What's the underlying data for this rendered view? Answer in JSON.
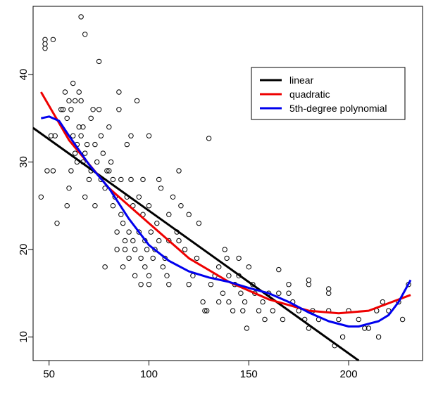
{
  "chart_data": {
    "type": "scatter",
    "title": "",
    "xlabel": "",
    "ylabel": "",
    "xlim": [
      42,
      237
    ],
    "ylim": [
      7.3,
      47.8
    ],
    "x_ticks": [
      50,
      100,
      150,
      200
    ],
    "y_ticks": [
      10,
      20,
      30,
      40
    ],
    "grid": false,
    "legend_position": "top-right",
    "point_color": "#000000",
    "points": [
      [
        46,
        26
      ],
      [
        48,
        44
      ],
      [
        48,
        43.5
      ],
      [
        48,
        43
      ],
      [
        52,
        44
      ],
      [
        49,
        29
      ],
      [
        51,
        33
      ],
      [
        53,
        33
      ],
      [
        52,
        29
      ],
      [
        54,
        23
      ],
      [
        56,
        36
      ],
      [
        57,
        36
      ],
      [
        58,
        38
      ],
      [
        59,
        35
      ],
      [
        60,
        37
      ],
      [
        61,
        36
      ],
      [
        62,
        39
      ],
      [
        63,
        37
      ],
      [
        60,
        27
      ],
      [
        59,
        25
      ],
      [
        61,
        29
      ],
      [
        62,
        33
      ],
      [
        63,
        31
      ],
      [
        64,
        32
      ],
      [
        64,
        30
      ],
      [
        65,
        34
      ],
      [
        65,
        38
      ],
      [
        66,
        33
      ],
      [
        66,
        46.6
      ],
      [
        68,
        44.6
      ],
      [
        66,
        37
      ],
      [
        67,
        34
      ],
      [
        68,
        31
      ],
      [
        69,
        32
      ],
      [
        67,
        30
      ],
      [
        68,
        26
      ],
      [
        70,
        28
      ],
      [
        71,
        35
      ],
      [
        72,
        36
      ],
      [
        73,
        32
      ],
      [
        74,
        30
      ],
      [
        73,
        25
      ],
      [
        71,
        29
      ],
      [
        75,
        41.5
      ],
      [
        75,
        36
      ],
      [
        76,
        33
      ],
      [
        76,
        28
      ],
      [
        77,
        31
      ],
      [
        78,
        27
      ],
      [
        79,
        29
      ],
      [
        80,
        34
      ],
      [
        80,
        29
      ],
      [
        78,
        18
      ],
      [
        81,
        30
      ],
      [
        82,
        28
      ],
      [
        82,
        25
      ],
      [
        83,
        26
      ],
      [
        84,
        22
      ],
      [
        84,
        20
      ],
      [
        85,
        38
      ],
      [
        85,
        36
      ],
      [
        86,
        28
      ],
      [
        86,
        24
      ],
      [
        87,
        23
      ],
      [
        87,
        18
      ],
      [
        88,
        21
      ],
      [
        88,
        20
      ],
      [
        89,
        32
      ],
      [
        89,
        26
      ],
      [
        90,
        22
      ],
      [
        90,
        19
      ],
      [
        91,
        33
      ],
      [
        91,
        28
      ],
      [
        92,
        25
      ],
      [
        92,
        21
      ],
      [
        93,
        20
      ],
      [
        93,
        17
      ],
      [
        94,
        37
      ],
      [
        95,
        26
      ],
      [
        95,
        22
      ],
      [
        96,
        19
      ],
      [
        96,
        16
      ],
      [
        97,
        28
      ],
      [
        97,
        24
      ],
      [
        98,
        21
      ],
      [
        98,
        18
      ],
      [
        99,
        20
      ],
      [
        100,
        33
      ],
      [
        100,
        25
      ],
      [
        100,
        17
      ],
      [
        100,
        16
      ],
      [
        101,
        22
      ],
      [
        102,
        19
      ],
      [
        103,
        20
      ],
      [
        104,
        23
      ],
      [
        105,
        21
      ],
      [
        105,
        28
      ],
      [
        106,
        27
      ],
      [
        107,
        18
      ],
      [
        108,
        19
      ],
      [
        109,
        17
      ],
      [
        110,
        24
      ],
      [
        110,
        21
      ],
      [
        110,
        16
      ],
      [
        112,
        26
      ],
      [
        114,
        22
      ],
      [
        115,
        21
      ],
      [
        115,
        29
      ],
      [
        116,
        25
      ],
      [
        118,
        20
      ],
      [
        120,
        24
      ],
      [
        120,
        16
      ],
      [
        122,
        17
      ],
      [
        124,
        19
      ],
      [
        125,
        23
      ],
      [
        127,
        14
      ],
      [
        128,
        13
      ],
      [
        129,
        13
      ],
      [
        130,
        32.7
      ],
      [
        131,
        16
      ],
      [
        133,
        17
      ],
      [
        135,
        18
      ],
      [
        135,
        14
      ],
      [
        137,
        15
      ],
      [
        138,
        20
      ],
      [
        139,
        19
      ],
      [
        140,
        17
      ],
      [
        140,
        14
      ],
      [
        142,
        13
      ],
      [
        143,
        16
      ],
      [
        145,
        19
      ],
      [
        145,
        17
      ],
      [
        146,
        15
      ],
      [
        147,
        13
      ],
      [
        148,
        14
      ],
      [
        149,
        11
      ],
      [
        150,
        18
      ],
      [
        152,
        16
      ],
      [
        153,
        15
      ],
      [
        155,
        13
      ],
      [
        157,
        14
      ],
      [
        158,
        12
      ],
      [
        160,
        15
      ],
      [
        162,
        13
      ],
      [
        165,
        17.7
      ],
      [
        165,
        15
      ],
      [
        167,
        12
      ],
      [
        170,
        16
      ],
      [
        170,
        15
      ],
      [
        172,
        14
      ],
      [
        175,
        13
      ],
      [
        178,
        12
      ],
      [
        180,
        16.5
      ],
      [
        180,
        16
      ],
      [
        180,
        11
      ],
      [
        182,
        13
      ],
      [
        185,
        12
      ],
      [
        190,
        15.5
      ],
      [
        190,
        15
      ],
      [
        190,
        13
      ],
      [
        193,
        9
      ],
      [
        195,
        12
      ],
      [
        197,
        10
      ],
      [
        200,
        13
      ],
      [
        205,
        12
      ],
      [
        208,
        11
      ],
      [
        210,
        11
      ],
      [
        214,
        13
      ],
      [
        215,
        10
      ],
      [
        217,
        14
      ],
      [
        220,
        13
      ],
      [
        225,
        14
      ],
      [
        227,
        12
      ],
      [
        230,
        16
      ]
    ],
    "series": [
      {
        "name": "linear",
        "color": "#000000",
        "x": [
          42,
          205
        ],
        "y": [
          33.9,
          7.3
        ]
      },
      {
        "name": "quadratic",
        "color": "#ee0000",
        "x": [
          46,
          60,
          80,
          100,
          120,
          140,
          160,
          180,
          195,
          210,
          231
        ],
        "y": [
          38.0,
          32.5,
          27.0,
          23.0,
          19.0,
          16.3,
          14.3,
          13.0,
          12.7,
          13.0,
          14.8
        ]
      },
      {
        "name": "5th-degree polynomial",
        "color": "#0000ee",
        "x": [
          46,
          50,
          55,
          60,
          70,
          80,
          90,
          100,
          110,
          120,
          130,
          140,
          150,
          160,
          170,
          180,
          190,
          200,
          205,
          210,
          215,
          220,
          225,
          231
        ],
        "y": [
          35.0,
          35.2,
          34.7,
          33.0,
          29.7,
          27.0,
          23.5,
          20.5,
          18.7,
          17.5,
          16.8,
          16.3,
          15.6,
          15.0,
          14.0,
          12.8,
          11.8,
          11.2,
          11.2,
          11.5,
          11.8,
          12.5,
          14.0,
          16.5
        ]
      }
    ]
  }
}
